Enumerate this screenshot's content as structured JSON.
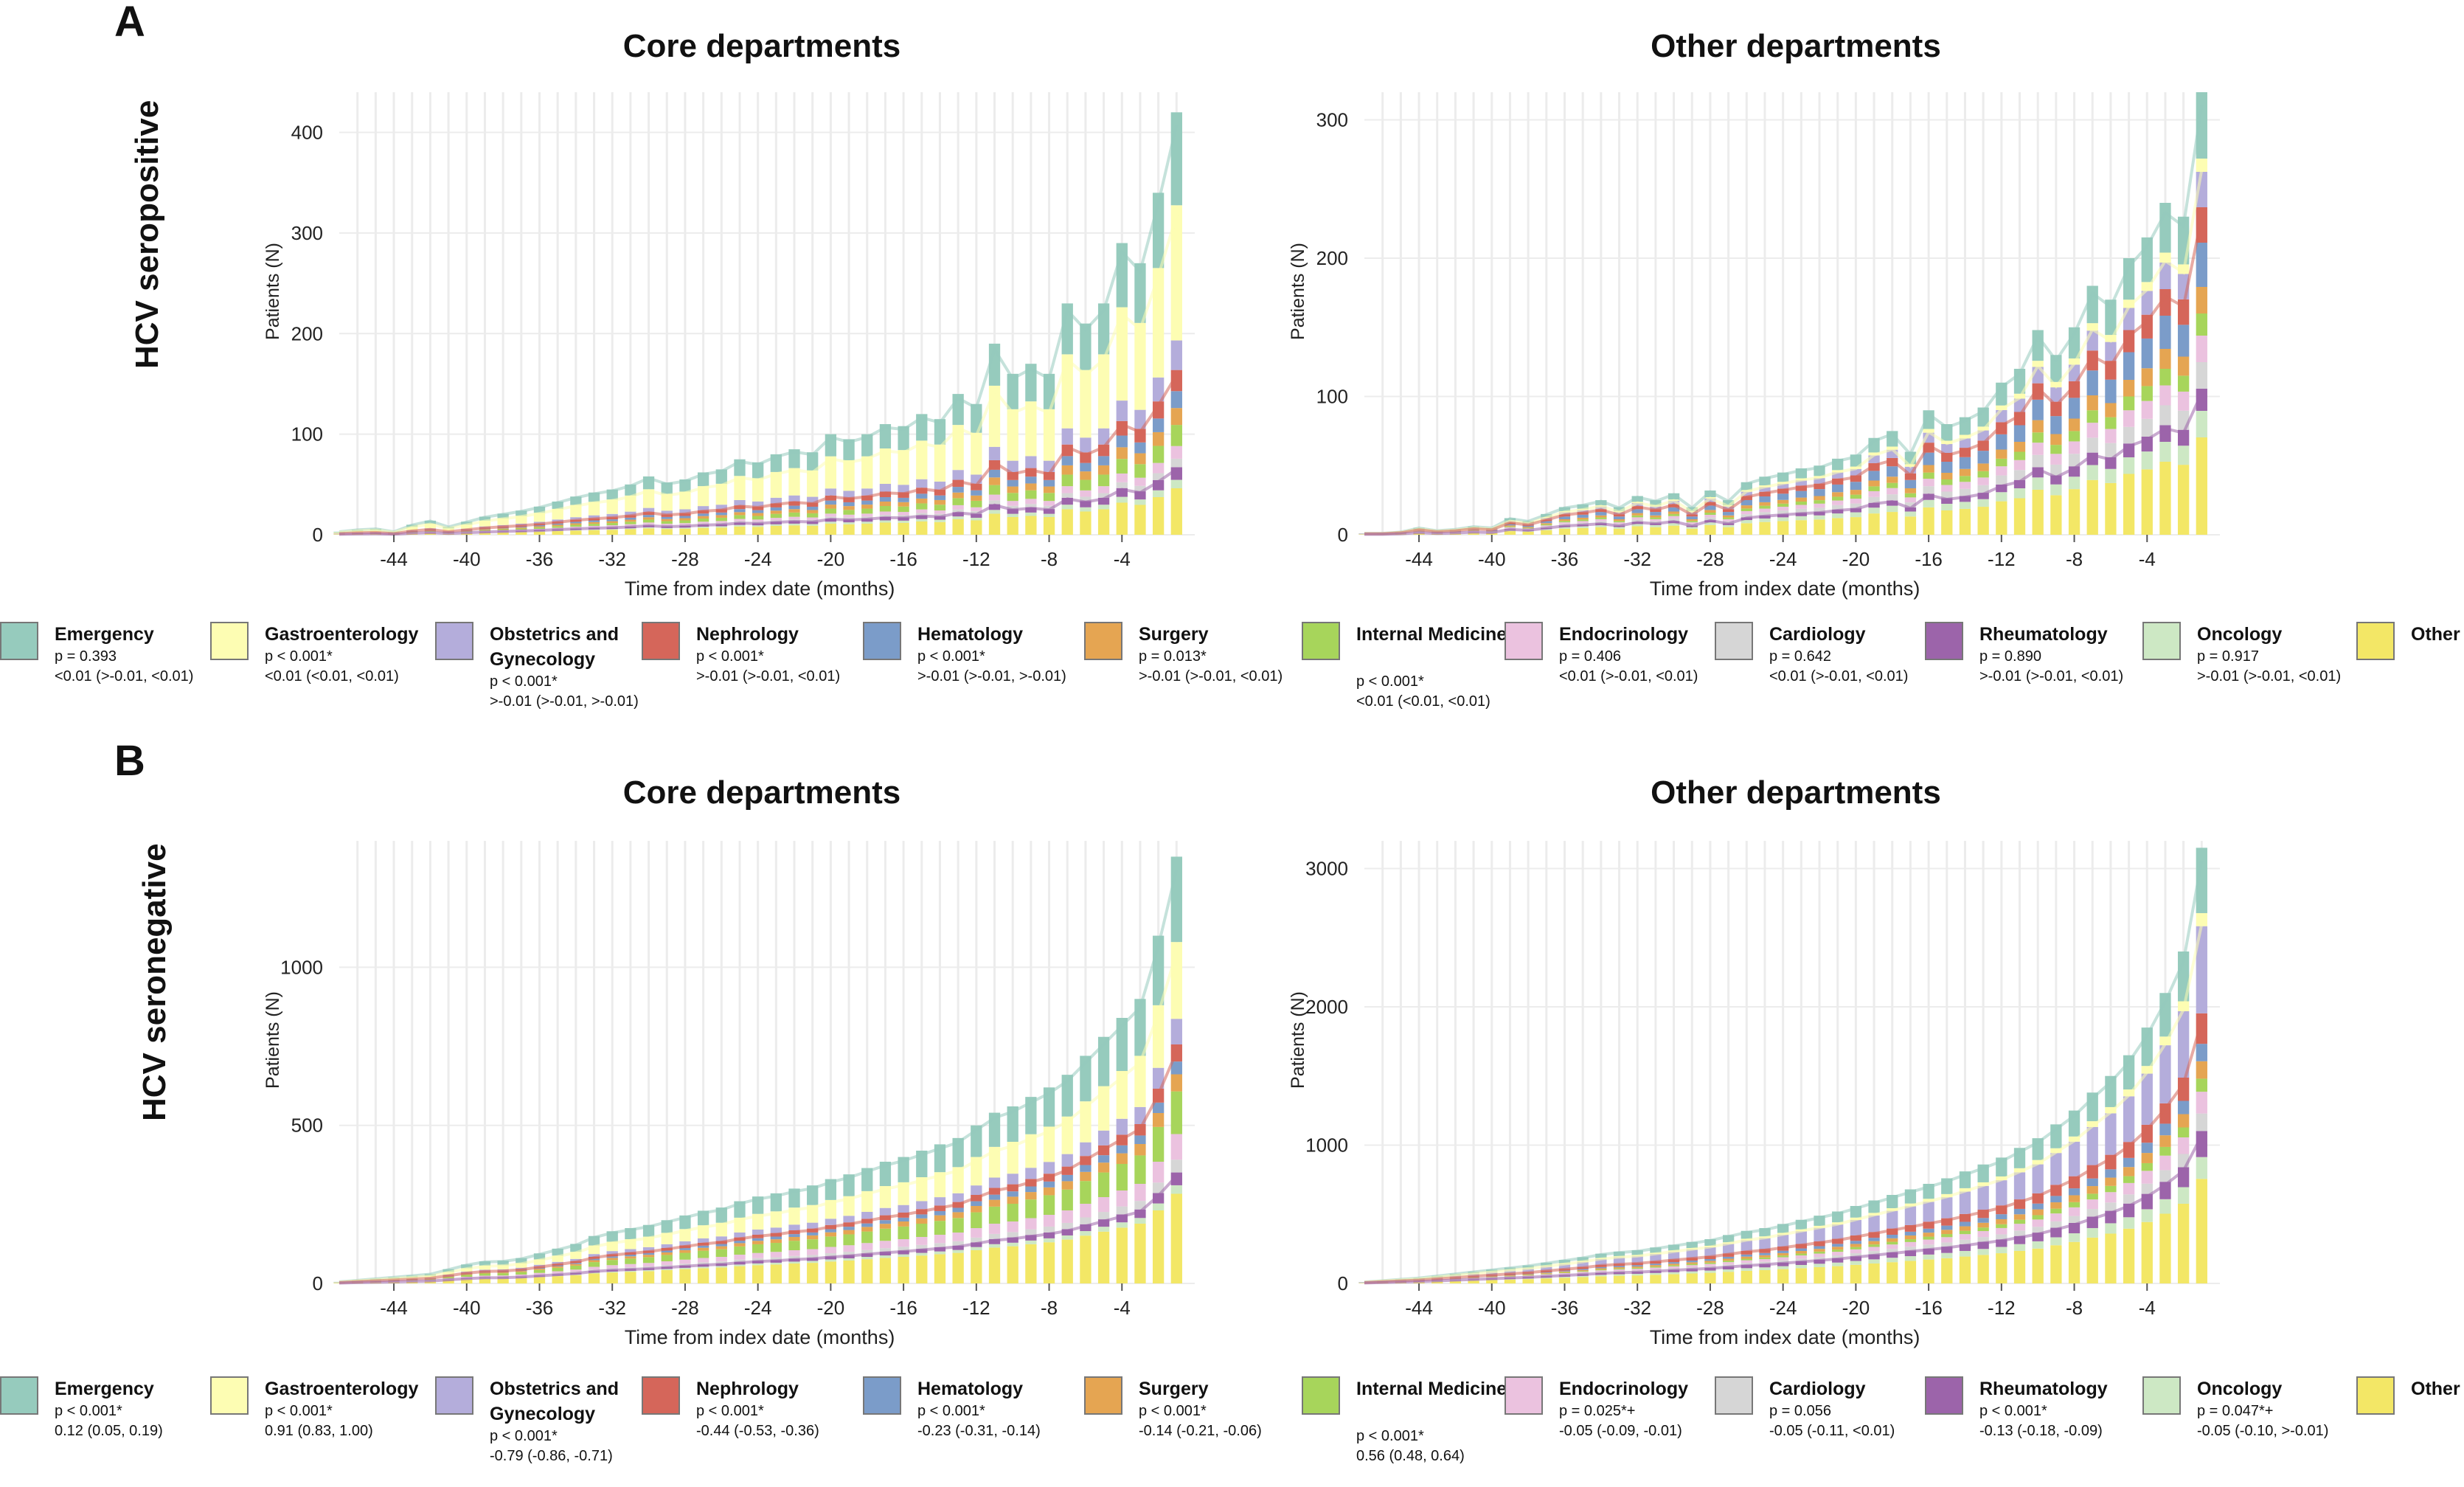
{
  "panels": [
    {
      "letter": "A",
      "row_label": "HCV seropositive"
    },
    {
      "letter": "B",
      "row_label": "HCV seronegative"
    }
  ],
  "titles": {
    "core": "Core departments",
    "other": "Other departments"
  },
  "colors": {
    "Emergency": "#96cbbd",
    "Gastroenterology": "#fdfdb3",
    "Obstetrics and Gynecology": "#b4addb",
    "Nephrology": "#d5665a",
    "Hematology": "#7b9cc9",
    "Surgery": "#e5a552",
    "Internal Medicine": "#a7d55b",
    "Endocrinology": "#ebc2df",
    "Cardiology": "#d6d6d6",
    "Rheumatology": "#9c64aa",
    "Oncology": "#cde8c4",
    "Other": "#f3e766"
  },
  "chart_data": [
    {
      "id": "A-core",
      "type": "bar",
      "title": "Core departments",
      "xlabel": "Time from index date (months)",
      "ylabel": "Patients (N)",
      "xlim": [
        -47,
        0
      ],
      "ylim": [
        0,
        440
      ],
      "yticks": [
        0,
        100,
        200,
        300,
        400
      ],
      "xticks": [
        -44,
        -40,
        -36,
        -32,
        -28,
        -24,
        -20,
        -16,
        -12,
        -8,
        -4
      ],
      "categories": [
        "Emergency",
        "Gastroenterology",
        "Obstetrics and Gynecology",
        "Nephrology",
        "Hematology",
        "Surgery",
        "Internal Medicine",
        "Endocrinology",
        "Cardiology",
        "Rheumatology",
        "Oncology",
        "Other"
      ],
      "shares": [
        0.22,
        0.32,
        0.07,
        0.05,
        0.04,
        0.04,
        0.05,
        0.03,
        0.02,
        0.03,
        0.02,
        0.11
      ],
      "totals": [
        3,
        5,
        6,
        3,
        10,
        14,
        8,
        13,
        18,
        21,
        24,
        28,
        33,
        38,
        42,
        45,
        50,
        58,
        52,
        55,
        62,
        65,
        75,
        72,
        80,
        85,
        82,
        100,
        95,
        100,
        110,
        108,
        120,
        115,
        140,
        130,
        190,
        160,
        170,
        160,
        230,
        210,
        230,
        290,
        270,
        340,
        420
      ]
    },
    {
      "id": "A-other",
      "type": "bar",
      "title": "Other departments",
      "xlabel": "Time from index date (months)",
      "ylabel": "Patients (N)",
      "xlim": [
        -47,
        0
      ],
      "ylim": [
        0,
        320
      ],
      "yticks": [
        0,
        100,
        200,
        300
      ],
      "xticks": [
        -44,
        -40,
        -36,
        -32,
        -28,
        -24,
        -20,
        -16,
        -12,
        -8,
        -4
      ],
      "categories": [
        "Emergency",
        "Gastroenterology",
        "Obstetrics and Gynecology",
        "Nephrology",
        "Hematology",
        "Surgery",
        "Internal Medicine",
        "Endocrinology",
        "Cardiology",
        "Rheumatology",
        "Oncology",
        "Other"
      ],
      "shares": [
        0.15,
        0.03,
        0.08,
        0.08,
        0.1,
        0.06,
        0.05,
        0.06,
        0.06,
        0.05,
        0.06,
        0.22
      ],
      "totals": [
        1,
        1,
        2,
        5,
        3,
        4,
        6,
        5,
        12,
        10,
        15,
        20,
        22,
        25,
        20,
        28,
        25,
        30,
        20,
        32,
        25,
        38,
        42,
        45,
        48,
        50,
        55,
        58,
        70,
        75,
        60,
        90,
        80,
        85,
        92,
        110,
        120,
        148,
        130,
        150,
        180,
        170,
        200,
        215,
        240,
        230,
        320
      ]
    },
    {
      "id": "B-core",
      "type": "bar",
      "title": "Core departments",
      "xlabel": "Time from index date (months)",
      "ylabel": "Patients (N)",
      "xlim": [
        -47,
        0
      ],
      "ylim": [
        0,
        1400
      ],
      "yticks": [
        0,
        500,
        1000
      ],
      "xticks": [
        -44,
        -40,
        -36,
        -32,
        -28,
        -24,
        -20,
        -16,
        -12,
        -8,
        -4
      ],
      "categories": [
        "Emergency",
        "Gastroenterology",
        "Obstetrics and Gynecology",
        "Nephrology",
        "Hematology",
        "Surgery",
        "Internal Medicine",
        "Endocrinology",
        "Cardiology",
        "Rheumatology",
        "Oncology",
        "Other"
      ],
      "shares": [
        0.2,
        0.18,
        0.06,
        0.04,
        0.03,
        0.04,
        0.1,
        0.06,
        0.03,
        0.03,
        0.02,
        0.21
      ],
      "totals": [
        5,
        10,
        15,
        20,
        25,
        30,
        45,
        60,
        70,
        72,
        80,
        95,
        110,
        125,
        150,
        165,
        175,
        185,
        200,
        215,
        230,
        240,
        260,
        275,
        285,
        300,
        310,
        330,
        345,
        365,
        385,
        400,
        420,
        440,
        460,
        500,
        540,
        560,
        590,
        620,
        660,
        720,
        780,
        840,
        900,
        1100,
        1350
      ]
    },
    {
      "id": "B-other",
      "type": "bar",
      "title": "Other departments",
      "xlabel": "Time from index date (months)",
      "ylabel": "Patients (N)",
      "xlim": [
        -47,
        0
      ],
      "ylim": [
        0,
        3200
      ],
      "yticks": [
        0,
        1000,
        2000,
        3000
      ],
      "xticks": [
        -44,
        -40,
        -36,
        -32,
        -28,
        -24,
        -20,
        -16,
        -12,
        -8,
        -4
      ],
      "categories": [
        "Emergency",
        "Gastroenterology",
        "Obstetrics and Gynecology",
        "Nephrology",
        "Hematology",
        "Surgery",
        "Internal Medicine",
        "Endocrinology",
        "Cardiology",
        "Rheumatology",
        "Oncology",
        "Other"
      ],
      "shares": [
        0.15,
        0.03,
        0.2,
        0.07,
        0.04,
        0.04,
        0.03,
        0.05,
        0.04,
        0.06,
        0.05,
        0.24
      ],
      "totals": [
        10,
        20,
        30,
        40,
        55,
        70,
        85,
        100,
        115,
        130,
        150,
        170,
        190,
        215,
        230,
        240,
        260,
        280,
        300,
        320,
        350,
        380,
        400,
        430,
        460,
        490,
        520,
        560,
        600,
        640,
        680,
        720,
        760,
        810,
        860,
        910,
        980,
        1050,
        1150,
        1250,
        1380,
        1500,
        1650,
        1850,
        2100,
        2400,
        3150
      ]
    }
  ],
  "legend_A": [
    {
      "name": "Emergency",
      "p": "p = 0.393",
      "est": "<0.01 (>-0.01, <0.01)"
    },
    {
      "name": "Gastroenterology",
      "p": "p < 0.001*",
      "est": "<0.01 (<0.01, <0.01)"
    },
    {
      "name": "Obstetrics and Gynecology",
      "p": "p < 0.001*",
      "est": ">-0.01 (>-0.01, >-0.01)"
    },
    {
      "name": "Nephrology",
      "p": "p < 0.001*",
      "est": ">-0.01 (>-0.01, <0.01)"
    },
    {
      "name": "Hematology",
      "p": "p < 0.001*",
      "est": ">-0.01 (>-0.01, >-0.01)"
    },
    {
      "name": "Surgery",
      "p": "p = 0.013*",
      "est": ">-0.01 (>-0.01, <0.01)"
    },
    {
      "name": "Internal Medicine",
      "p": "p < 0.001*",
      "est": "<0.01 (<0.01, <0.01)"
    },
    {
      "name": "Endocrinology",
      "p": "p = 0.406",
      "est": "<0.01 (>-0.01, <0.01)"
    },
    {
      "name": "Cardiology",
      "p": "p = 0.642",
      "est": "<0.01 (>-0.01, <0.01)"
    },
    {
      "name": "Rheumatology",
      "p": "p = 0.890",
      "est": ">-0.01 (>-0.01, <0.01)"
    },
    {
      "name": "Oncology",
      "p": "p = 0.917",
      "est": ">-0.01 (>-0.01, <0.01)"
    },
    {
      "name": "Other",
      "p": "",
      "est": ""
    }
  ],
  "legend_B": [
    {
      "name": "Emergency",
      "p": "p < 0.001*",
      "est": "0.12 (0.05, 0.19)"
    },
    {
      "name": "Gastroenterology",
      "p": "p < 0.001*",
      "est": "0.91 (0.83, 1.00)"
    },
    {
      "name": "Obstetrics and Gynecology",
      "p": "p < 0.001*",
      "est": "-0.79 (-0.86, -0.71)"
    },
    {
      "name": "Nephrology",
      "p": "p < 0.001*",
      "est": "-0.44 (-0.53, -0.36)"
    },
    {
      "name": "Hematology",
      "p": "p < 0.001*",
      "est": "-0.23 (-0.31, -0.14)"
    },
    {
      "name": "Surgery",
      "p": "p < 0.001*",
      "est": "-0.14 (-0.21, -0.06)"
    },
    {
      "name": "Internal Medicine",
      "p": "p < 0.001*",
      "est": "0.56 (0.48, 0.64)"
    },
    {
      "name": "Endocrinology",
      "p": "p = 0.025*+",
      "est": "-0.05 (-0.09, -0.01)"
    },
    {
      "name": "Cardiology",
      "p": "p = 0.056",
      "est": "-0.05 (-0.11, <0.01)"
    },
    {
      "name": "Rheumatology",
      "p": "p < 0.001*",
      "est": "-0.13 (-0.18, -0.09)"
    },
    {
      "name": "Oncology",
      "p": "p = 0.047*+",
      "est": "-0.05 (-0.10, >-0.01)"
    },
    {
      "name": "Other",
      "p": "",
      "est": ""
    }
  ]
}
